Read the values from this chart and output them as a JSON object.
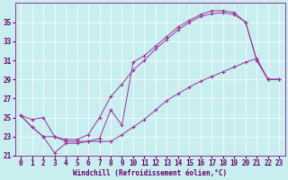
{
  "xlabel": "Windchill (Refroidissement éolien,°C)",
  "background_color": "#c8eef0",
  "line_color": "#993399",
  "xlim": [
    -0.5,
    23.5
  ],
  "ylim": [
    21,
    37
  ],
  "xticks": [
    0,
    1,
    2,
    3,
    4,
    5,
    6,
    7,
    8,
    9,
    10,
    11,
    12,
    13,
    14,
    15,
    16,
    17,
    18,
    19,
    20,
    21,
    22,
    23
  ],
  "yticks": [
    21,
    23,
    25,
    27,
    29,
    31,
    33,
    35
  ],
  "line1_x": [
    0,
    1,
    2,
    3,
    4,
    5,
    6,
    7,
    8,
    9,
    10,
    11,
    12,
    13,
    14,
    15,
    16,
    17,
    18,
    19,
    20,
    21,
    22,
    23
  ],
  "line1_y": [
    25.2,
    24.0,
    23.0,
    21.3,
    22.3,
    22.3,
    22.5,
    22.8,
    25.8,
    24.2,
    30.8,
    31.5,
    32.5,
    33.5,
    34.5,
    35.2,
    35.8,
    36.2,
    36.2,
    36.0,
    35.0,
    31.0,
    29.0,
    29.0
  ],
  "line2_x": [
    0,
    1,
    2,
    3,
    4,
    5,
    6,
    7,
    8,
    9,
    10,
    11,
    12,
    13,
    14,
    15,
    16,
    17,
    18,
    19,
    20,
    21,
    22,
    23
  ],
  "line2_y": [
    25.2,
    24.0,
    23.0,
    23.0,
    22.7,
    22.7,
    23.2,
    25.0,
    27.2,
    28.5,
    30.0,
    31.0,
    32.2,
    33.2,
    34.2,
    35.0,
    35.6,
    35.9,
    36.0,
    35.8,
    35.0,
    31.0,
    29.0,
    29.0
  ],
  "line3_x": [
    0,
    1,
    2,
    3,
    4,
    5,
    6,
    7,
    8,
    9,
    10,
    11,
    12,
    13,
    14,
    15,
    16,
    17,
    18,
    19,
    20,
    21,
    22,
    23
  ],
  "line3_y": [
    25.2,
    24.8,
    25.0,
    23.0,
    22.5,
    22.5,
    22.5,
    22.5,
    22.5,
    23.2,
    24.0,
    24.8,
    25.8,
    26.8,
    27.5,
    28.2,
    28.8,
    29.3,
    29.8,
    30.3,
    30.8,
    31.2,
    29.0,
    29.0
  ],
  "grid_color": "#ffffff",
  "tick_color": "#660066",
  "label_color": "#660066",
  "spine_color": "#993399",
  "tick_fontsize": 5.5,
  "xlabel_fontsize": 5.5
}
